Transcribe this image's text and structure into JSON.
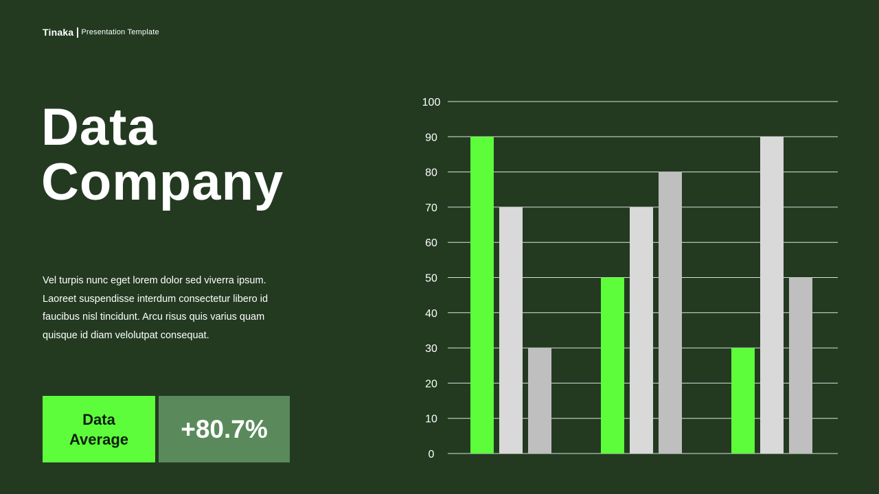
{
  "brand": {
    "name": "Tinaka",
    "subtitle": "Presentation Template"
  },
  "headline": {
    "line1": "Data",
    "line2": "Company"
  },
  "description": {
    "lines": [
      "Vel turpis nunc eget lorem dolor sed viverra ipsum.",
      "Laoreet suspendisse interdum consectetur libero id",
      "faucibus nisl tincidunt. Arcu risus quis varius quam",
      "quisque id diam velolutpat consequat."
    ]
  },
  "stat": {
    "label_line1": "Data",
    "label_line2": "Average",
    "value": "+80.7%"
  },
  "colors": {
    "background": "#233a21",
    "accent_green": "#5dfd3b",
    "light_gray": "#d9d9d9",
    "mid_gray": "#bfbfbf",
    "stat_box": "#5a8a5b"
  },
  "chart_data": {
    "type": "bar",
    "categories": [
      "",
      "",
      ""
    ],
    "series": [
      {
        "values": [
          90,
          50,
          30
        ],
        "color": "#5dfd3b"
      },
      {
        "values": [
          70,
          70,
          90
        ],
        "color": "#d9d9d9"
      },
      {
        "values": [
          30,
          80,
          50
        ],
        "color": "#bfbfbf"
      }
    ],
    "ylim": [
      0,
      100
    ],
    "yticks": [
      0,
      10,
      20,
      30,
      40,
      50,
      60,
      70,
      80,
      90,
      100
    ],
    "grid": true,
    "legend": "none"
  }
}
